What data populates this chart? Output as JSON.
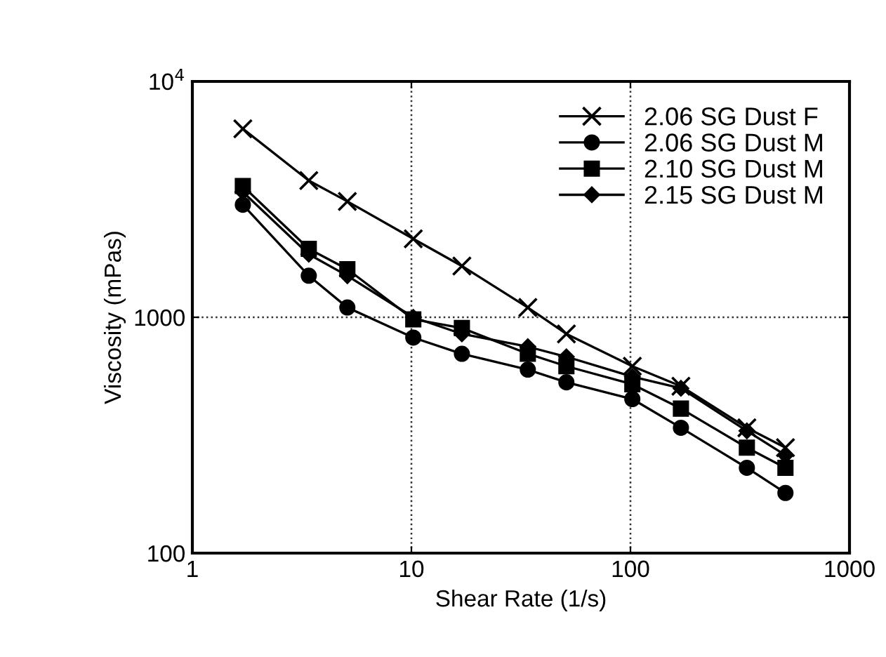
{
  "chart_data": {
    "type": "line",
    "xlabel": "Shear Rate (1/s)",
    "ylabel": "Viscosity (mPas)",
    "log": "xy",
    "x": [
      1.7,
      3.4,
      5.1,
      10.2,
      17,
      34,
      51,
      102,
      170,
      340,
      510
    ],
    "series": [
      {
        "name": "2.06 SG Dust F",
        "color": "#000000",
        "marker": "cross",
        "values": [
          6300,
          3800,
          3100,
          2150,
          1650,
          1100,
          850,
          620,
          510,
          340,
          280
        ]
      },
      {
        "name": "2.06 SG Dust M",
        "color": "#000000",
        "marker": "circle",
        "values": [
          3000,
          1500,
          1100,
          820,
          700,
          600,
          530,
          450,
          340,
          230,
          180
        ]
      },
      {
        "name": "2.10 SG Dust M",
        "color": "#000000",
        "marker": "square",
        "values": [
          3600,
          1950,
          1600,
          980,
          900,
          700,
          620,
          520,
          410,
          280,
          230
        ]
      },
      {
        "name": "2.15 SG Dust M",
        "color": "#000000",
        "marker": "diamond",
        "values": [
          3400,
          1850,
          1500,
          1000,
          850,
          750,
          680,
          560,
          500,
          330,
          260
        ]
      }
    ],
    "xlim": [
      1,
      1000
    ],
    "xticks": [
      1,
      10,
      100,
      1000
    ],
    "ylim": [
      100,
      10000
    ],
    "yticks": [
      100,
      1000,
      {
        "value": 10000,
        "label": "10$^{4}$"
      }
    ],
    "grid": true,
    "legend": "top right",
    "line_style": "solid"
  }
}
